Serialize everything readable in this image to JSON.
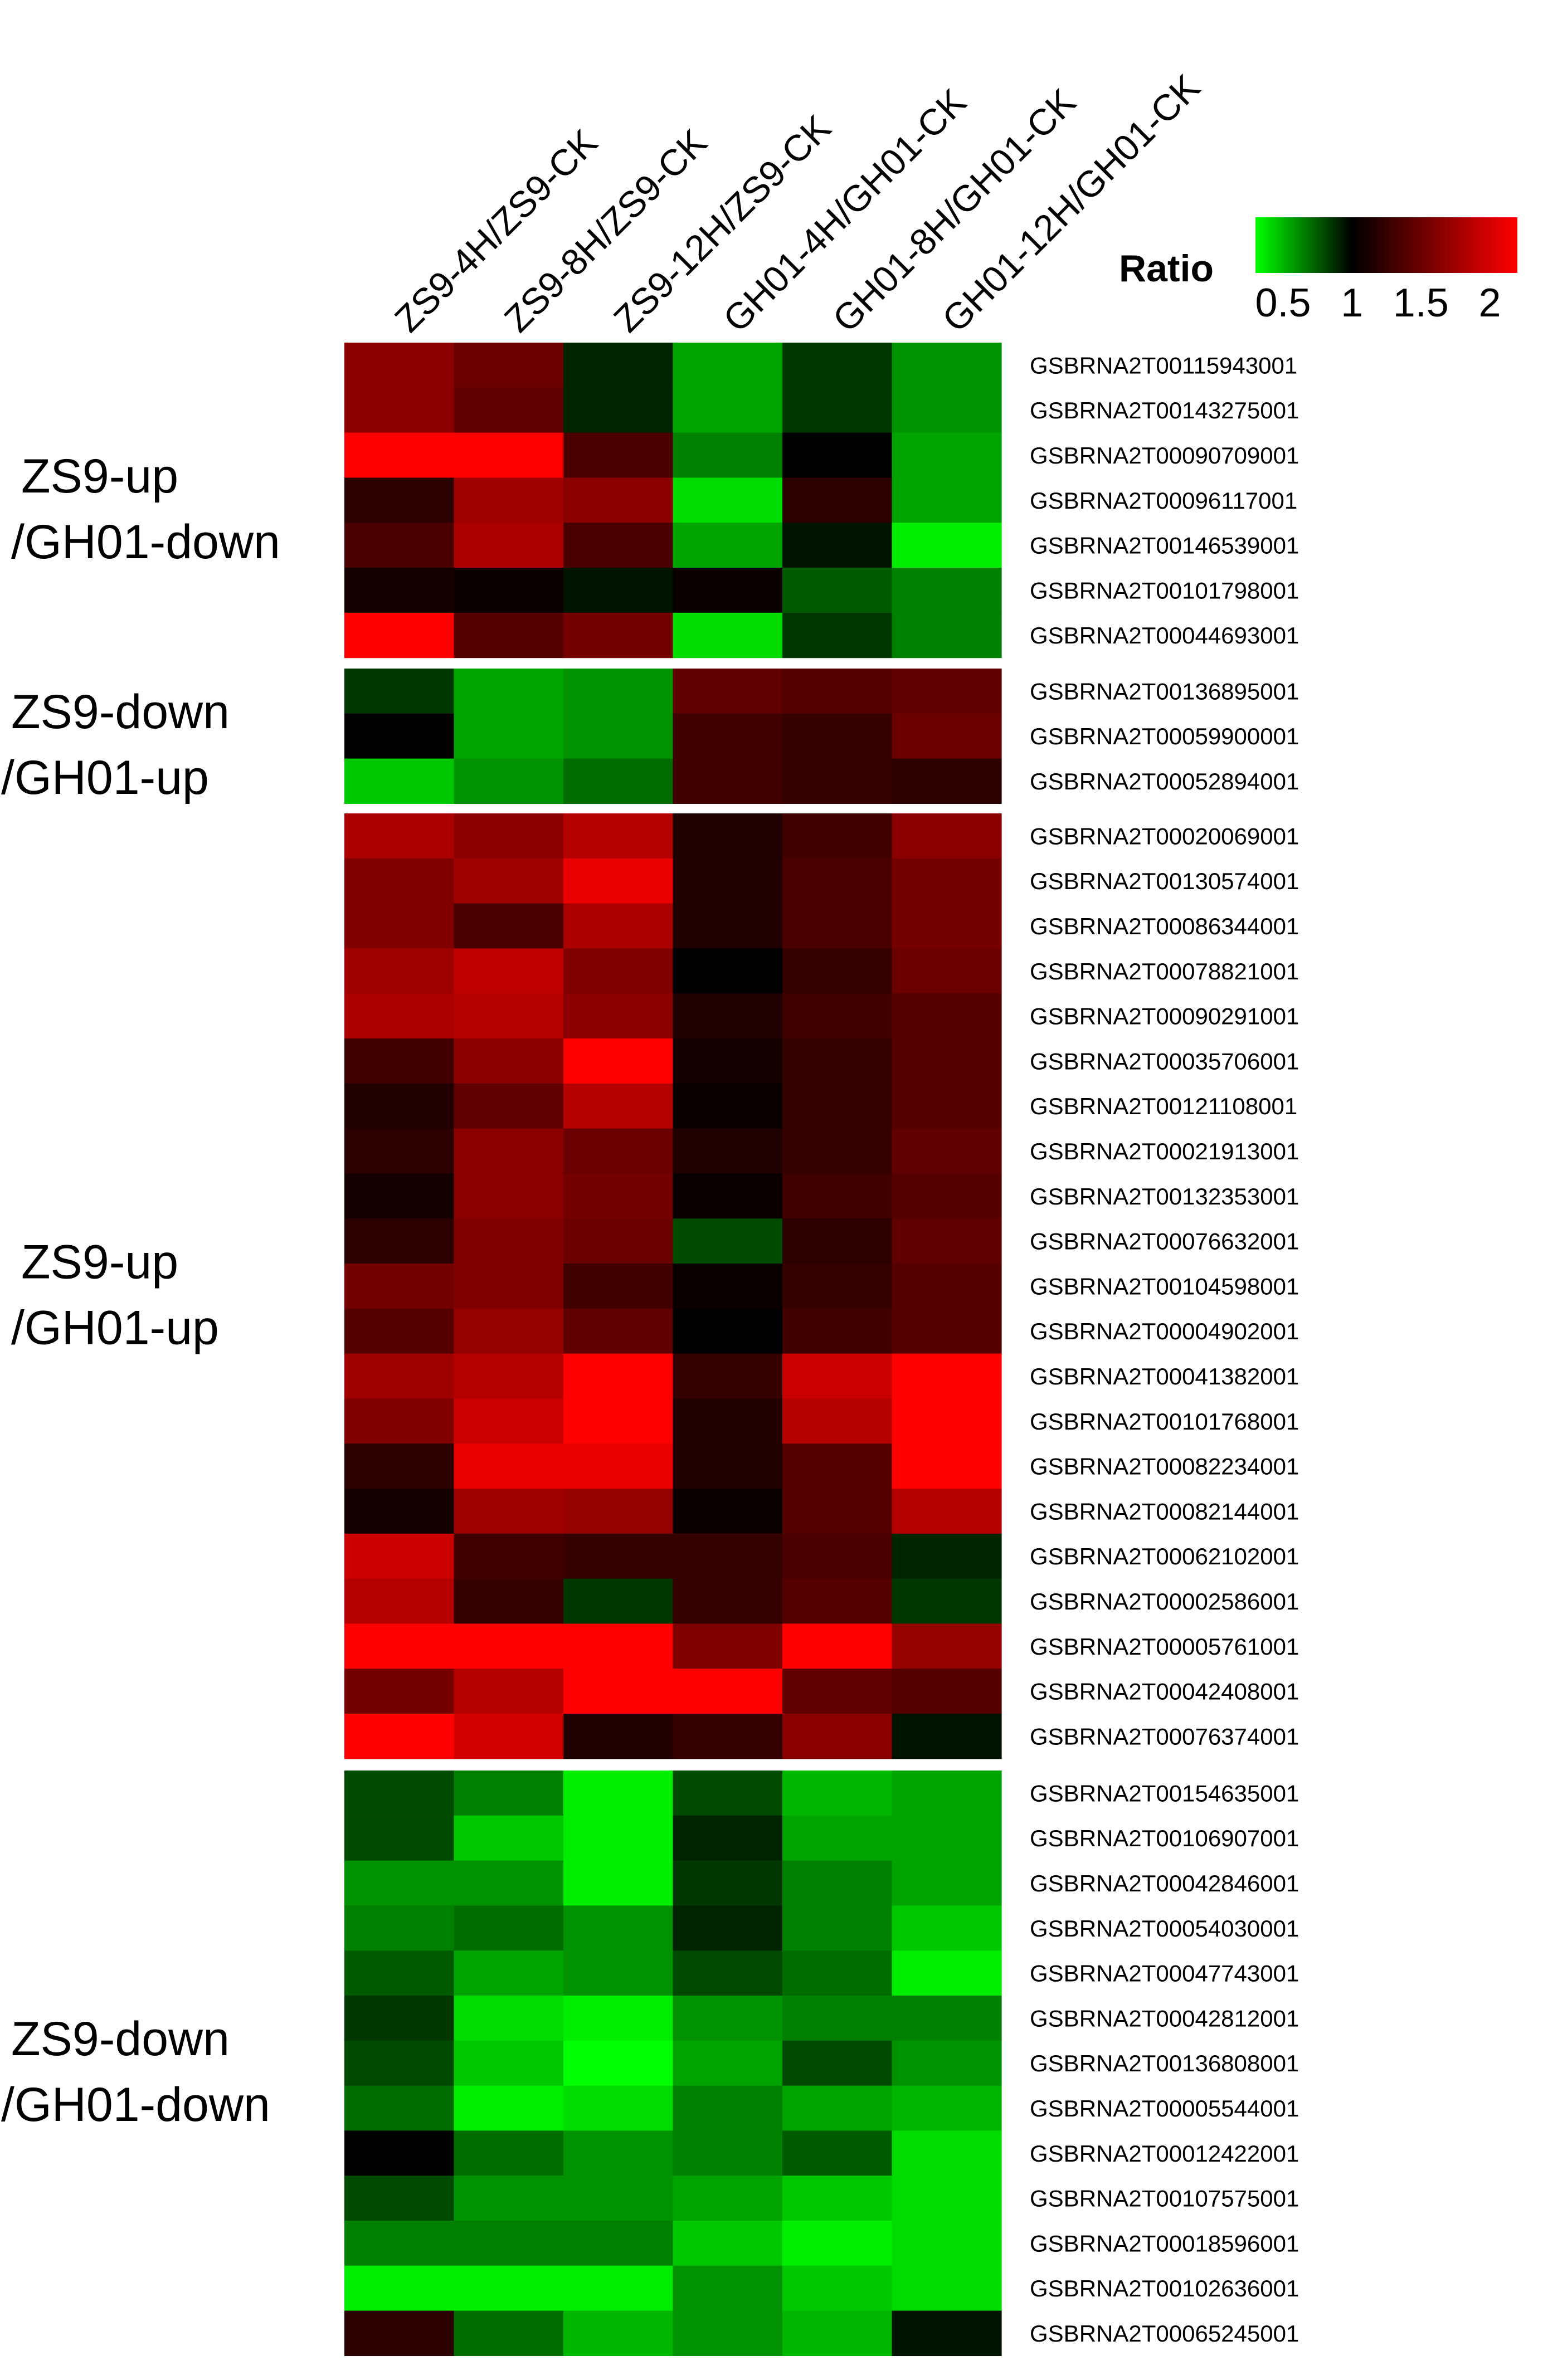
{
  "chart_data": {
    "type": "heatmap",
    "columns": [
      "ZS9-4H/ZS9-CK",
      "ZS9-8H/ZS9-CK",
      "ZS9-12H/ZS9-CK",
      "GH01-4H/GH01-CK",
      "GH01-8H/GH01-CK",
      "GH01-12H/GH01-CK"
    ],
    "legend": {
      "title": "Ratio",
      "ticks": [
        "0.5",
        "1",
        "1.5",
        "2"
      ],
      "range": [
        0.3,
        2.2
      ],
      "colors": {
        "low": "#00ff00",
        "mid": "#000000",
        "high": "#ff0000"
      }
    },
    "groups": [
      {
        "label_lines": [
          "ZS9-up",
          "/GH01-down"
        ],
        "genes": [
          "GSBRNA2T00115943001",
          "GSBRNA2T00143275001",
          "GSBRNA2T00090709001",
          "GSBRNA2T00096117001",
          "GSBRNA2T00146539001",
          "GSBRNA2T00101798001",
          "GSBRNA2T00044693001"
        ],
        "values": [
          [
            1.65,
            1.5,
            0.9,
            0.55,
            0.85,
            0.6
          ],
          [
            1.65,
            1.45,
            0.9,
            0.55,
            0.85,
            0.6
          ],
          [
            2.2,
            2.2,
            1.35,
            0.65,
            1.0,
            0.55
          ],
          [
            1.2,
            1.75,
            1.65,
            0.4,
            1.2,
            0.55
          ],
          [
            1.35,
            1.8,
            1.35,
            0.55,
            0.95,
            0.35
          ],
          [
            1.1,
            1.05,
            0.95,
            1.05,
            0.75,
            0.65
          ],
          [
            2.2,
            1.4,
            1.55,
            0.4,
            0.85,
            0.65
          ]
        ]
      },
      {
        "label_lines": [
          "ZS9-down",
          "/GH01-up"
        ],
        "genes": [
          "GSBRNA2T00136895001",
          "GSBRNA2T00059900001",
          "GSBRNA2T00052894001"
        ],
        "values": [
          [
            0.85,
            0.55,
            0.6,
            1.45,
            1.4,
            1.45
          ],
          [
            1.0,
            0.55,
            0.6,
            1.3,
            1.25,
            1.5
          ],
          [
            0.45,
            0.6,
            0.7,
            1.3,
            1.25,
            1.2
          ]
        ]
      },
      {
        "label_lines": [
          "ZS9-up",
          "/GH01-up"
        ],
        "genes": [
          "GSBRNA2T00020069001",
          "GSBRNA2T00130574001",
          "GSBRNA2T00086344001",
          "GSBRNA2T00078821001",
          "GSBRNA2T00090291001",
          "GSBRNA2T00035706001",
          "GSBRNA2T00121108001",
          "GSBRNA2T00021913001",
          "GSBRNA2T00132353001",
          "GSBRNA2T00076632001",
          "GSBRNA2T00104598001",
          "GSBRNA2T00004902001",
          "GSBRNA2T00041382001",
          "GSBRNA2T00101768001",
          "GSBRNA2T00082234001",
          "GSBRNA2T00082144001",
          "GSBRNA2T00062102001",
          "GSBRNA2T00002586001",
          "GSBRNA2T00005761001",
          "GSBRNA2T00042408001",
          "GSBRNA2T00076374001"
        ],
        "values": [
          [
            1.8,
            1.65,
            1.85,
            1.15,
            1.3,
            1.65
          ],
          [
            1.6,
            1.75,
            2.1,
            1.15,
            1.35,
            1.55
          ],
          [
            1.6,
            1.35,
            1.8,
            1.15,
            1.35,
            1.55
          ],
          [
            1.75,
            1.9,
            1.6,
            1.0,
            1.25,
            1.5
          ],
          [
            1.8,
            1.85,
            1.65,
            1.15,
            1.3,
            1.4
          ],
          [
            1.3,
            1.65,
            2.2,
            1.1,
            1.25,
            1.4
          ],
          [
            1.15,
            1.45,
            1.85,
            1.05,
            1.25,
            1.4
          ],
          [
            1.2,
            1.65,
            1.5,
            1.15,
            1.25,
            1.45
          ],
          [
            1.1,
            1.65,
            1.55,
            1.05,
            1.3,
            1.4
          ],
          [
            1.2,
            1.6,
            1.5,
            0.8,
            1.2,
            1.45
          ],
          [
            1.55,
            1.6,
            1.3,
            1.05,
            1.25,
            1.4
          ],
          [
            1.4,
            1.7,
            1.45,
            1.0,
            1.3,
            1.4
          ],
          [
            1.75,
            1.85,
            2.2,
            1.25,
            1.95,
            2.2
          ],
          [
            1.6,
            1.95,
            2.2,
            1.15,
            1.85,
            2.2
          ],
          [
            1.2,
            2.1,
            2.1,
            1.15,
            1.4,
            2.2
          ],
          [
            1.1,
            1.75,
            1.7,
            1.05,
            1.4,
            1.85
          ],
          [
            1.95,
            1.3,
            1.25,
            1.25,
            1.35,
            0.9
          ],
          [
            1.85,
            1.25,
            0.85,
            1.25,
            1.4,
            0.85
          ],
          [
            2.2,
            2.2,
            2.2,
            1.6,
            2.2,
            1.7
          ],
          [
            1.55,
            1.85,
            2.2,
            2.2,
            1.45,
            1.4
          ],
          [
            2.2,
            2.0,
            1.15,
            1.25,
            1.65,
            0.95
          ]
        ]
      },
      {
        "label_lines": [
          "ZS9-down",
          "/GH01-down"
        ],
        "genes": [
          "GSBRNA2T00154635001",
          "GSBRNA2T00106907001",
          "GSBRNA2T00042846001",
          "GSBRNA2T00054030001",
          "GSBRNA2T00047743001",
          "GSBRNA2T00042812001",
          "GSBRNA2T00136808001",
          "GSBRNA2T00005544001",
          "GSBRNA2T00012422001",
          "GSBRNA2T00107575001",
          "GSBRNA2T00018596001",
          "GSBRNA2T00102636001",
          "GSBRNA2T00065245001"
        ],
        "values": [
          [
            0.8,
            0.65,
            0.35,
            0.8,
            0.5,
            0.55
          ],
          [
            0.8,
            0.45,
            0.35,
            0.9,
            0.55,
            0.55
          ],
          [
            0.6,
            0.6,
            0.35,
            0.85,
            0.65,
            0.55
          ],
          [
            0.65,
            0.7,
            0.6,
            0.9,
            0.65,
            0.45
          ],
          [
            0.75,
            0.55,
            0.6,
            0.8,
            0.7,
            0.35
          ],
          [
            0.85,
            0.4,
            0.35,
            0.6,
            0.65,
            0.65
          ],
          [
            0.8,
            0.45,
            0.3,
            0.55,
            0.8,
            0.6
          ],
          [
            0.7,
            0.35,
            0.4,
            0.65,
            0.55,
            0.5
          ],
          [
            1.0,
            0.7,
            0.6,
            0.65,
            0.75,
            0.4
          ],
          [
            0.8,
            0.6,
            0.6,
            0.55,
            0.45,
            0.4
          ],
          [
            0.65,
            0.65,
            0.65,
            0.45,
            0.35,
            0.4
          ],
          [
            0.35,
            0.35,
            0.35,
            0.6,
            0.45,
            0.4
          ],
          [
            1.2,
            0.7,
            0.5,
            0.6,
            0.5,
            0.95
          ]
        ]
      }
    ]
  }
}
